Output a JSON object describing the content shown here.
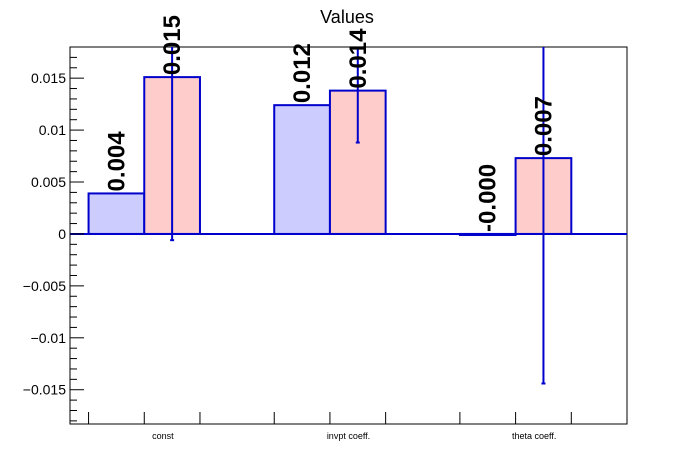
{
  "chart_data": {
    "type": "bar",
    "title": "Values",
    "xlabel": "",
    "ylabel": "",
    "categories": [
      "const",
      "invpt coeff.",
      "theta coeff."
    ],
    "series": [
      {
        "values": [
          0.0039,
          0.0124,
          -0.0001
        ],
        "data_labels": [
          "0.004",
          "0.012",
          "-0.000"
        ],
        "color": "#ccccff",
        "edge_color": "#0000cc"
      },
      {
        "values": [
          0.0151,
          0.0138,
          0.0073
        ],
        "errors": [
          0.0157,
          0.005,
          0.0217
        ],
        "data_labels": [
          "0.015",
          "0.014",
          "0.007"
        ],
        "color": "#ffcccc",
        "edge_color": "#0000cc"
      }
    ],
    "ylim": [
      -0.0183,
      0.018
    ],
    "y_ticks": [
      -0.015,
      -0.01,
      -0.005,
      0,
      0.005,
      0.01,
      0.015
    ],
    "y_tick_labels": [
      "−0.015",
      "−0.01",
      "−0.005",
      "0",
      "0.005",
      "0.01",
      "0.015"
    ],
    "grid": false,
    "legend": "none"
  }
}
